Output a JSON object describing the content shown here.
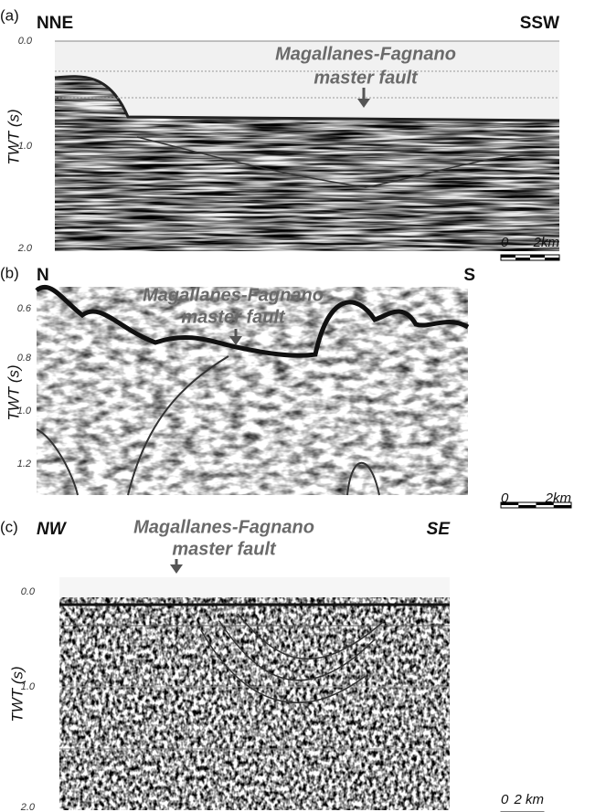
{
  "panels": [
    {
      "label": "(a)",
      "left": "NNE",
      "right": "SSW",
      "annotation": [
        "Magallanes-Fagnano",
        "master fault"
      ],
      "axis_label": "TWT (s)",
      "ticks": [
        "0.0",
        "1.0",
        "2.0"
      ],
      "scale": [
        "0",
        "2km"
      ]
    },
    {
      "label": "(b)",
      "left": "N",
      "right": "S",
      "annotation": [
        "Magallanes-Fagnano",
        "master fault"
      ],
      "axis_label": "TWT (s)",
      "ticks": [
        "0.6",
        "0.8",
        "1.0",
        "1.2"
      ],
      "scale": [
        "0",
        "2km"
      ]
    },
    {
      "label": "(c)",
      "left": "NW",
      "right": "SE",
      "annotation": [
        "Magallanes-Fagnano",
        "master fault"
      ],
      "axis_label": "TWT (s)",
      "ticks": [
        "0.0",
        "1.0",
        "2.0"
      ],
      "scale": [
        "0",
        "2 km"
      ]
    }
  ]
}
